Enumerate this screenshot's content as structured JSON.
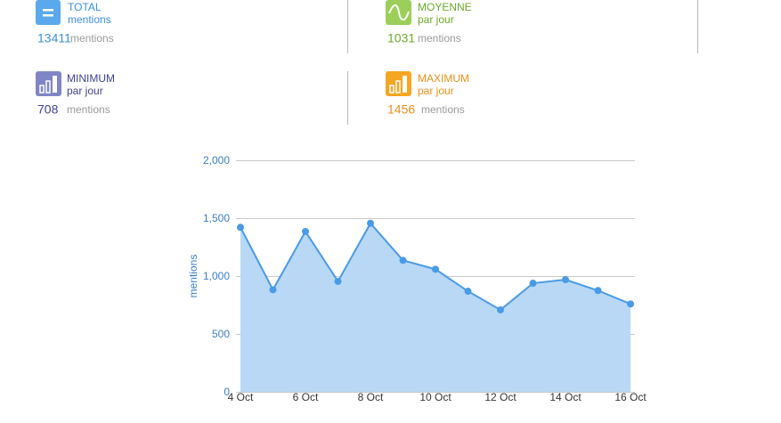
{
  "stats": [
    {
      "title": "TOTAL",
      "subtitle": "mentions",
      "value": 13411,
      "unit": "mentions"
    },
    {
      "title": "MOYENNE",
      "subtitle": "par jour",
      "value": 1031,
      "unit": "mentions"
    },
    {
      "title": "MINIMUM",
      "subtitle": "par jour",
      "value": 708,
      "unit": "mentions"
    },
    {
      "title": "MAXIMUM",
      "subtitle": "par jour",
      "value": 1456,
      "unit": "mentions"
    }
  ],
  "chart_data": {
    "type": "area",
    "y_label": "mentions",
    "categories": [
      "4 Oct",
      null,
      "6 Oct",
      null,
      "8 Oct",
      null,
      "10 Oct",
      null,
      "12 Oct",
      null,
      "14 Oct",
      null,
      "16 Oct"
    ],
    "values": [
      1421,
      882,
      1385,
      954,
      1456,
      1136,
      1059,
      869,
      708,
      938,
      969,
      875,
      759
    ],
    "color": "#4a9be6",
    "fill": "#b8d8f5",
    "ylim": [
      0,
      2000
    ],
    "yticks": [
      0,
      500,
      {
        "value": 1000,
        "label": "1,000"
      },
      {
        "value": 1500,
        "label": "1,500"
      },
      {
        "value": 2000,
        "label": "2,000"
      }
    ],
    "grid": true
  }
}
